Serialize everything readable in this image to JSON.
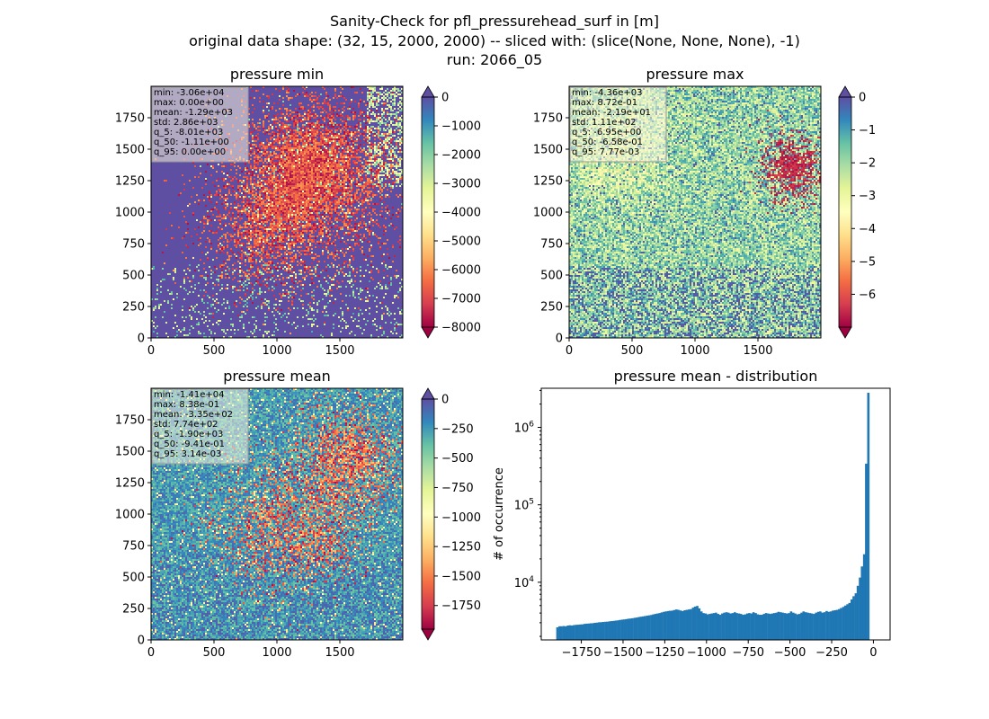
{
  "figure": {
    "title_lines": [
      "Sanity-Check for pfl_pressurehead_surf in [m]",
      "original data shape: (32, 15, 2000, 2000) -- sliced with: (slice(None, None, None), -1)",
      "run: 2066_05"
    ]
  },
  "chart_data": [
    {
      "type": "heatmap",
      "title": "pressure min",
      "colormap": "Spectral",
      "x_ticks": [
        0,
        500,
        1000,
        1500
      ],
      "y_ticks": [
        0,
        250,
        500,
        750,
        1000,
        1250,
        1500,
        1750
      ],
      "xlim": [
        0,
        2000
      ],
      "ylim": [
        0,
        2000
      ],
      "colorbar": {
        "vmin": -8000,
        "vmax": 0,
        "ticks": [
          0,
          -1000,
          -2000,
          -3000,
          -4000,
          -5000,
          -6000,
          -7000,
          -8000
        ],
        "extend": "both"
      },
      "stats": [
        "min: -3.06e+04",
        "max: 0.00e+00",
        "mean: -1.29e+03",
        "std: 2.86e+03",
        "q_5: -8.01e+03",
        "q_50: -1.11e+00",
        "q_95: 0.00e+00"
      ]
    },
    {
      "type": "heatmap",
      "title": "pressure max",
      "colormap": "Spectral",
      "x_ticks": [
        0,
        500,
        1000,
        1500
      ],
      "y_ticks": [
        0,
        250,
        500,
        750,
        1000,
        1250,
        1500,
        1750
      ],
      "xlim": [
        0,
        2000
      ],
      "ylim": [
        0,
        2000
      ],
      "colorbar": {
        "vmin": -7,
        "vmax": 0,
        "ticks": [
          0,
          -1,
          -2,
          -3,
          -4,
          -5,
          -6
        ],
        "extend": "both"
      },
      "stats": [
        "min: -4.36e+03",
        "max: 8.72e-01",
        "mean: -2.19e+01",
        "std: 1.11e+02",
        "q_5: -6.95e+00",
        "q_50: -6.58e-01",
        "q_95: 7.77e-03"
      ]
    },
    {
      "type": "heatmap",
      "title": "pressure mean",
      "colormap": "Spectral",
      "x_ticks": [
        0,
        500,
        1000,
        1500
      ],
      "y_ticks": [
        0,
        250,
        500,
        750,
        1000,
        1250,
        1500,
        1750
      ],
      "xlim": [
        0,
        2000
      ],
      "ylim": [
        0,
        2000
      ],
      "colorbar": {
        "vmin": -1950,
        "vmax": 0,
        "ticks": [
          0,
          -250,
          -500,
          -750,
          -1000,
          -1250,
          -1500,
          -1750
        ],
        "extend": "both"
      },
      "stats": [
        "min: -1.41e+04",
        "max: 8.38e-01",
        "mean: -3.35e+02",
        "std: 7.74e+02",
        "q_5: -1.90e+03",
        "q_50: -9.41e-01",
        "q_95: 3.14e-03"
      ]
    },
    {
      "type": "bar",
      "title": "pressure mean - distribution",
      "ylabel": "# of occurrence",
      "y_scale": "log",
      "xlim": [
        -1990,
        100
      ],
      "ylim": [
        1800,
        3200000
      ],
      "x_ticks": [
        -1750,
        -1500,
        -1250,
        -1000,
        -750,
        -500,
        -250,
        0
      ],
      "x_tick_labels": [
        "−1750",
        "−1500",
        "−1250",
        "−1000",
        "−750",
        "−500",
        "−250",
        "0"
      ],
      "y_ticks": [
        10000,
        100000,
        1000000
      ],
      "y_tick_labels": [
        {
          "base": "10",
          "exp": "4"
        },
        {
          "base": "10",
          "exp": "5"
        },
        {
          "base": "10",
          "exp": "6"
        }
      ],
      "bar_color": "#1f77b4",
      "bin_width": 12.5,
      "bin_centers": [
        -1894,
        -1881,
        -1869,
        -1856,
        -1844,
        -1831,
        -1819,
        -1806,
        -1794,
        -1781,
        -1769,
        -1756,
        -1744,
        -1731,
        -1719,
        -1706,
        -1694,
        -1681,
        -1669,
        -1656,
        -1644,
        -1631,
        -1619,
        -1606,
        -1594,
        -1581,
        -1569,
        -1556,
        -1544,
        -1531,
        -1519,
        -1506,
        -1494,
        -1481,
        -1469,
        -1456,
        -1444,
        -1431,
        -1419,
        -1406,
        -1394,
        -1381,
        -1369,
        -1356,
        -1344,
        -1331,
        -1319,
        -1306,
        -1294,
        -1281,
        -1269,
        -1256,
        -1244,
        -1231,
        -1219,
        -1206,
        -1194,
        -1181,
        -1169,
        -1156,
        -1144,
        -1131,
        -1119,
        -1106,
        -1094,
        -1081,
        -1069,
        -1056,
        -1044,
        -1031,
        -1019,
        -1006,
        -994,
        -981,
        -969,
        -956,
        -944,
        -931,
        -919,
        -906,
        -894,
        -881,
        -869,
        -856,
        -844,
        -831,
        -819,
        -806,
        -794,
        -781,
        -769,
        -756,
        -744,
        -731,
        -719,
        -706,
        -694,
        -681,
        -669,
        -656,
        -644,
        -631,
        -619,
        -606,
        -594,
        -581,
        -569,
        -556,
        -544,
        -531,
        -519,
        -506,
        -494,
        -481,
        -469,
        -456,
        -444,
        -431,
        -419,
        -406,
        -394,
        -381,
        -369,
        -356,
        -344,
        -331,
        -319,
        -306,
        -294,
        -281,
        -269,
        -256,
        -244,
        -231,
        -219,
        -206,
        -194,
        -181,
        -169,
        -156,
        -144,
        -131,
        -119,
        -106,
        -94,
        -81,
        -69,
        -56,
        -44,
        -31,
        -19,
        -6
      ],
      "counts": [
        2620,
        2700,
        2700,
        2720,
        2700,
        2760,
        2780,
        2760,
        2800,
        2820,
        2830,
        2850,
        2860,
        2900,
        2920,
        2930,
        2950,
        2960,
        2990,
        3010,
        3040,
        3050,
        3070,
        3090,
        3100,
        3130,
        3150,
        3170,
        3200,
        3220,
        3260,
        3290,
        3310,
        3340,
        3380,
        3400,
        3430,
        3470,
        3500,
        3550,
        3590,
        3620,
        3660,
        3700,
        3740,
        3780,
        3850,
        3900,
        3950,
        4000,
        4080,
        4150,
        4200,
        4250,
        4280,
        4300,
        4380,
        4450,
        4400,
        4320,
        4250,
        4350,
        4400,
        4450,
        4500,
        4700,
        4850,
        4950,
        4600,
        4200,
        4000,
        3950,
        3850,
        3900,
        3950,
        4000,
        4050,
        3900,
        3800,
        3950,
        4050,
        4100,
        4050,
        3950,
        4000,
        4100,
        4000,
        3950,
        3900,
        3800,
        3850,
        3950,
        4000,
        3950,
        4100,
        4000,
        3850,
        3800,
        3800,
        3900,
        4000,
        3950,
        3900,
        3950,
        4000,
        4050,
        4150,
        4100,
        4050,
        4000,
        3950,
        4000,
        4200,
        4050,
        3950,
        3850,
        3900,
        4050,
        4200,
        4100,
        4050,
        4000,
        3950,
        3900,
        4050,
        4150,
        4200,
        4050,
        4100,
        4250,
        4150,
        4200,
        4300,
        4350,
        4400,
        4500,
        4650,
        4800,
        5000,
        5200,
        5400,
        6000,
        6600,
        7200,
        9000,
        11500,
        16000,
        23000,
        340000,
        2800000
      ]
    }
  ]
}
